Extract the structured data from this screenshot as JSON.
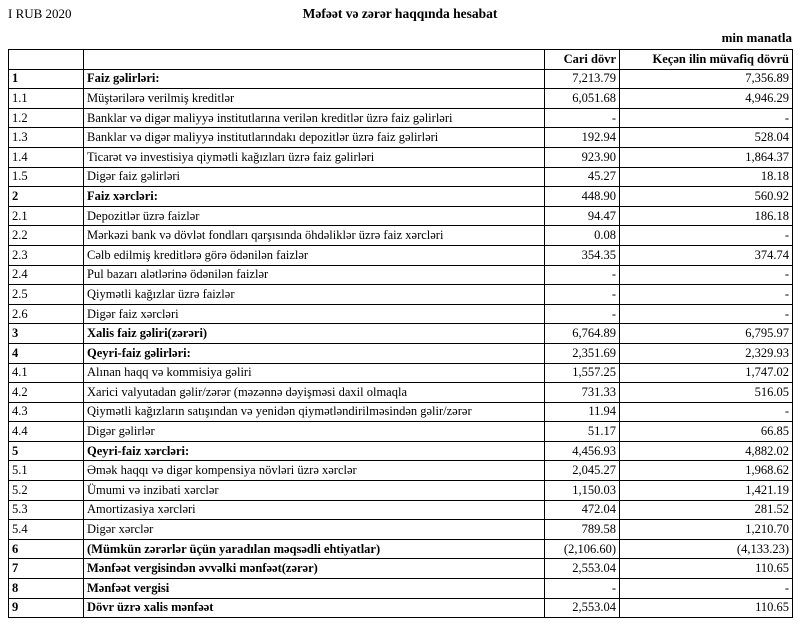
{
  "header": {
    "period": "I RUB 2020",
    "title": "Məfəət və zərər haqqında hesabat",
    "unit_note": "min manatla"
  },
  "table": {
    "columns": {
      "code": "",
      "label": "",
      "current": "Cari dövr",
      "previous": "Keçən ilin müvafiq dövrü"
    },
    "rows": [
      {
        "code": "1",
        "label": "Faiz gəlirləri:",
        "current": "7,213.79",
        "previous": "7,356.89",
        "bold": true
      },
      {
        "code": "1.1",
        "label": "Müştərilərə verilmiş kreditlər",
        "current": "6,051.68",
        "previous": "4,946.29",
        "bold": false
      },
      {
        "code": "1.2",
        "label": "Banklar və digər maliyyə institutlarına verilən kreditlər üzrə faiz gəlirləri",
        "current": "-",
        "previous": "-",
        "bold": false
      },
      {
        "code": "1.3",
        "label": "Banklar və digər maliyyə institutlarındakı depozitlər üzrə faiz gəlirləri",
        "current": "192.94",
        "previous": "528.04",
        "bold": false
      },
      {
        "code": "1.4",
        "label": "Ticarət və investisiya qiymətli kağızları üzrə faiz gəlirləri",
        "current": "923.90",
        "previous": "1,864.37",
        "bold": false
      },
      {
        "code": "1.5",
        "label": "Digər faiz gəlirləri",
        "current": "45.27",
        "previous": "18.18",
        "bold": false
      },
      {
        "code": "2",
        "label": "Faiz xərcləri:",
        "current": "448.90",
        "previous": "560.92",
        "bold": true
      },
      {
        "code": "2.1",
        "label": "Depozitlər üzrə faizlər",
        "current": "94.47",
        "previous": "186.18",
        "bold": false
      },
      {
        "code": "2.2",
        "label": "Mərkəzi bank və dövlət fondları qarşısında öhdəliklər üzrə faiz xərcləri",
        "current": "0.08",
        "previous": "-",
        "bold": false
      },
      {
        "code": "2.3",
        "label": "Cəlb edilmiş kreditlərə görə ödənilən faizlər",
        "current": "354.35",
        "previous": "374.74",
        "bold": false
      },
      {
        "code": "2.4",
        "label": "Pul bazarı alətlərinə ödənilən faizlər",
        "current": "-",
        "previous": "-",
        "bold": false
      },
      {
        "code": "2.5",
        "label": "Qiymətli kağızlar üzrə faizlər",
        "current": "-",
        "previous": "-",
        "bold": false
      },
      {
        "code": "2.6",
        "label": "Digər faiz xərcləri",
        "current": "-",
        "previous": "-",
        "bold": false
      },
      {
        "code": "3",
        "label": "Xalis faiz gəliri(zərəri)",
        "current": "6,764.89",
        "previous": "6,795.97",
        "bold": true
      },
      {
        "code": "4",
        "label": "Qeyri-faiz gəlirləri:",
        "current": "2,351.69",
        "previous": "2,329.93",
        "bold": true
      },
      {
        "code": "4.1",
        "label": "Alınan haqq və kommisiya gəliri",
        "current": "1,557.25",
        "previous": "1,747.02",
        "bold": false
      },
      {
        "code": "4.2",
        "label": "Xarici valyutadan gəlir/zərər (məzənnə dəyişməsi daxil olmaqla",
        "current": "731.33",
        "previous": "516.05",
        "bold": false
      },
      {
        "code": "4.3",
        "label": "Qiymətli kağızların satışından və yenidən qiymətləndirilməsindən gəlir/zərər",
        "current": "11.94",
        "previous": "-",
        "bold": false
      },
      {
        "code": "4.4",
        "label": "Digər gəlirlər",
        "current": "51.17",
        "previous": "66.85",
        "bold": false
      },
      {
        "code": "5",
        "label": "Qeyri-faiz xərcləri:",
        "current": "4,456.93",
        "previous": "4,882.02",
        "bold": true
      },
      {
        "code": "5.1",
        "label": "Əmək haqqı və digər kompensiya növləri üzrə xərclər",
        "current": "2,045.27",
        "previous": "1,968.62",
        "bold": false
      },
      {
        "code": "5.2",
        "label": "Ümumi və inzibati xərclər",
        "current": "1,150.03",
        "previous": "1,421.19",
        "bold": false
      },
      {
        "code": "5.3",
        "label": "Amortizasiya xərcləri",
        "current": "472.04",
        "previous": "281.52",
        "bold": false
      },
      {
        "code": "5.4",
        "label": "Digər xərclər",
        "current": "789.58",
        "previous": "1,210.70",
        "bold": false
      },
      {
        "code": "6",
        "label": "(Mümkün zərərlər üçün yaradılan məqsədli ehtiyatlar)",
        "current": "(2,106.60)",
        "previous": "(4,133.23)",
        "bold": true
      },
      {
        "code": "7",
        "label": "Mənfəət vergisindən əvvəlki mənfəət(zərər)",
        "current": "2,553.04",
        "previous": "110.65",
        "bold": true
      },
      {
        "code": "8",
        "label": "Mənfəət vergisi",
        "current": "-",
        "previous": "-",
        "bold": true
      },
      {
        "code": "9",
        "label": "Dövr üzrə xalis mənfəət",
        "current": "2,553.04",
        "previous": "110.65",
        "bold": true
      }
    ]
  }
}
